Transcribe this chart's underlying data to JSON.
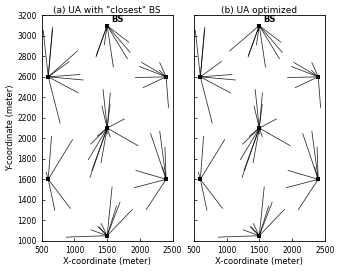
{
  "title_a": "(a) UA with \"closest\" BS",
  "title_b": "(b) UA optimized",
  "bs_label": "BS",
  "xlabel": "X-coordinate (meter)",
  "ylabel": "Y-coordinate (meter)",
  "xlim": [
    500,
    2500
  ],
  "ylim": [
    1000,
    3200
  ],
  "xticks": [
    500,
    1000,
    1500,
    2000,
    2500
  ],
  "yticks": [
    1000,
    1200,
    1400,
    1600,
    1800,
    2000,
    2200,
    2400,
    2600,
    2800,
    3000,
    3200
  ],
  "bs_positions": [
    [
      1500,
      3100
    ],
    [
      600,
      2600
    ],
    [
      2400,
      2600
    ],
    [
      1500,
      2100
    ],
    [
      600,
      1600
    ],
    [
      2400,
      1600
    ],
    [
      1500,
      1050
    ]
  ],
  "n_users": 60,
  "user_seed": 7,
  "figsize": [
    3.4,
    2.72
  ],
  "dpi": 100
}
